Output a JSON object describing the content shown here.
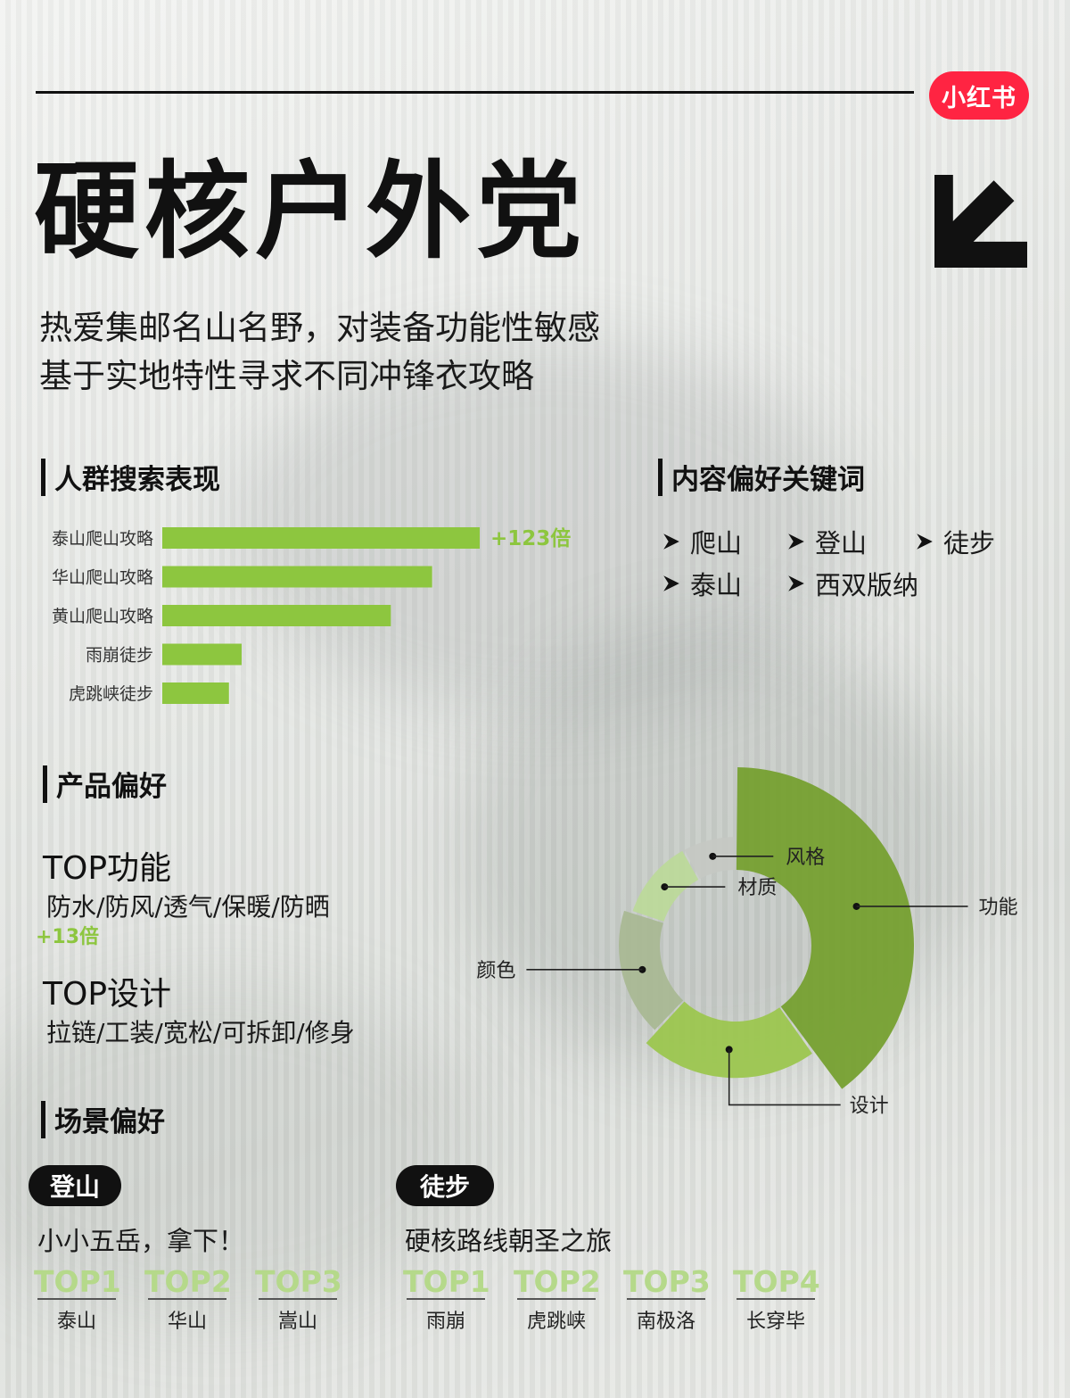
{
  "logo": {
    "text": "小红书"
  },
  "title": "硬核户外党",
  "subtitle": [
    "热爱集邮名山名野，对装备功能性敏感",
    "基于实地特性寻求不同冲锋衣攻略"
  ],
  "sections": {
    "search": "人群搜索表现",
    "keywords": "内容偏好关键词",
    "product": "产品偏好",
    "scene": "场景偏好"
  },
  "keywords": [
    "爬山",
    "登山",
    "徒步",
    "泰山",
    "西双版纳"
  ],
  "product": {
    "top_function_head": "TOP功能",
    "top_function_list": "防水/防风/透气/保暖/防晒",
    "function_badge": "+13倍",
    "top_design_head": "TOP设计",
    "top_design_list": "拉链/工装/宽松/可拆卸/修身"
  },
  "scenes": [
    {
      "tag": "登山",
      "slogan": "小小五岳，拿下！",
      "ranks": [
        {
          "label": "TOP1",
          "name": "泰山"
        },
        {
          "label": "TOP2",
          "name": "华山"
        },
        {
          "label": "TOP3",
          "name": "嵩山"
        }
      ]
    },
    {
      "tag": "徒步",
      "slogan": "硬核路线朝圣之旅",
      "ranks": [
        {
          "label": "TOP1",
          "name": "雨崩"
        },
        {
          "label": "TOP2",
          "name": "虎跳峡"
        },
        {
          "label": "TOP3",
          "name": "南极洛"
        },
        {
          "label": "TOP4",
          "name": "长穿毕"
        }
      ]
    }
  ],
  "colors": {
    "green_dark": "#76a030",
    "green_mid": "#9cc64f",
    "green_light": "#bcd99a",
    "sage": "#a9b894",
    "gray": "#c5c8c3",
    "accent": "#8dc63f",
    "logo_red": "#ff2442"
  },
  "chart_data": [
    {
      "type": "bar",
      "orientation": "horizontal",
      "categories": [
        "泰山爬山攻略",
        "华山爬山攻略",
        "黄山爬山攻略",
        "雨崩徒步",
        "虎跳峡徒步"
      ],
      "values": [
        100,
        85,
        72,
        25,
        21
      ],
      "annotations": [
        {
          "category": "泰山爬山攻略",
          "text": "+123倍"
        }
      ],
      "grid": false
    },
    {
      "type": "pie",
      "variant": "radial-ring",
      "labels": [
        "功能",
        "设计",
        "颜色",
        "材质",
        "风格"
      ],
      "values": [
        40,
        22,
        18,
        12,
        8
      ],
      "radial_depth": [
        1.0,
        0.55,
        0.4,
        0.32,
        0.32
      ]
    }
  ]
}
